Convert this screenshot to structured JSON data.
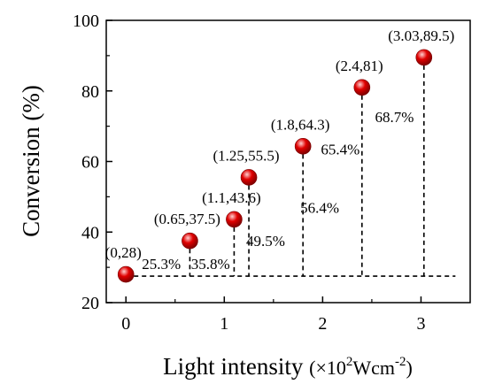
{
  "chart_data": {
    "type": "scatter",
    "xlabel": "Light intensity",
    "xlabel_unit": {
      "prefix": "(×10",
      "exp1": "2",
      "mid": "Wcm",
      "exp2": "-2",
      "suffix": ")"
    },
    "ylabel": "Conversion (%)",
    "xlim": [
      -0.2,
      3.5
    ],
    "ylim": [
      20,
      100
    ],
    "x_ticks": [
      0,
      1,
      2,
      3
    ],
    "x_tick_labels": [
      "0",
      "1",
      "2",
      "3"
    ],
    "y_ticks": [
      20,
      40,
      60,
      80,
      100
    ],
    "y_tick_labels": [
      "20",
      "40",
      "60",
      "80",
      "100"
    ],
    "baseline": 27.5,
    "baseline_x_end": 3.35,
    "points": [
      {
        "x": 0,
        "y": 28,
        "label": "(0,28)"
      },
      {
        "x": 0.65,
        "y": 37.5,
        "label": "(0.65,37.5)"
      },
      {
        "x": 1.1,
        "y": 43.6,
        "label": "(1.1,43.6)"
      },
      {
        "x": 1.25,
        "y": 55.5,
        "label": "(1.25,55.5)"
      },
      {
        "x": 1.8,
        "y": 64.3,
        "label": "(1.8,64.3)"
      },
      {
        "x": 2.4,
        "y": 81,
        "label": "(2.4,81)"
      },
      {
        "x": 3.03,
        "y": 89.5,
        "label": "(3.03,89.5)"
      }
    ],
    "percent_annotations": [
      {
        "text": "25.3%",
        "x": 0.36,
        "y": 31
      },
      {
        "text": "35.8%",
        "x": 0.86,
        "y": 31
      },
      {
        "text": "49.5%",
        "x": 1.42,
        "y": 37.5
      },
      {
        "text": "56.4%",
        "x": 1.97,
        "y": 47
      },
      {
        "text": "65.4%",
        "x": 2.18,
        "y": 63.5
      },
      {
        "text": "68.7%",
        "x": 2.73,
        "y": 72.7
      }
    ],
    "colors": {
      "marker": "#e00000",
      "marker_highlight": "#ffd0d0",
      "marker_dark": "#7a0000",
      "axis": "#000000"
    },
    "grid": false,
    "legend": "none"
  }
}
